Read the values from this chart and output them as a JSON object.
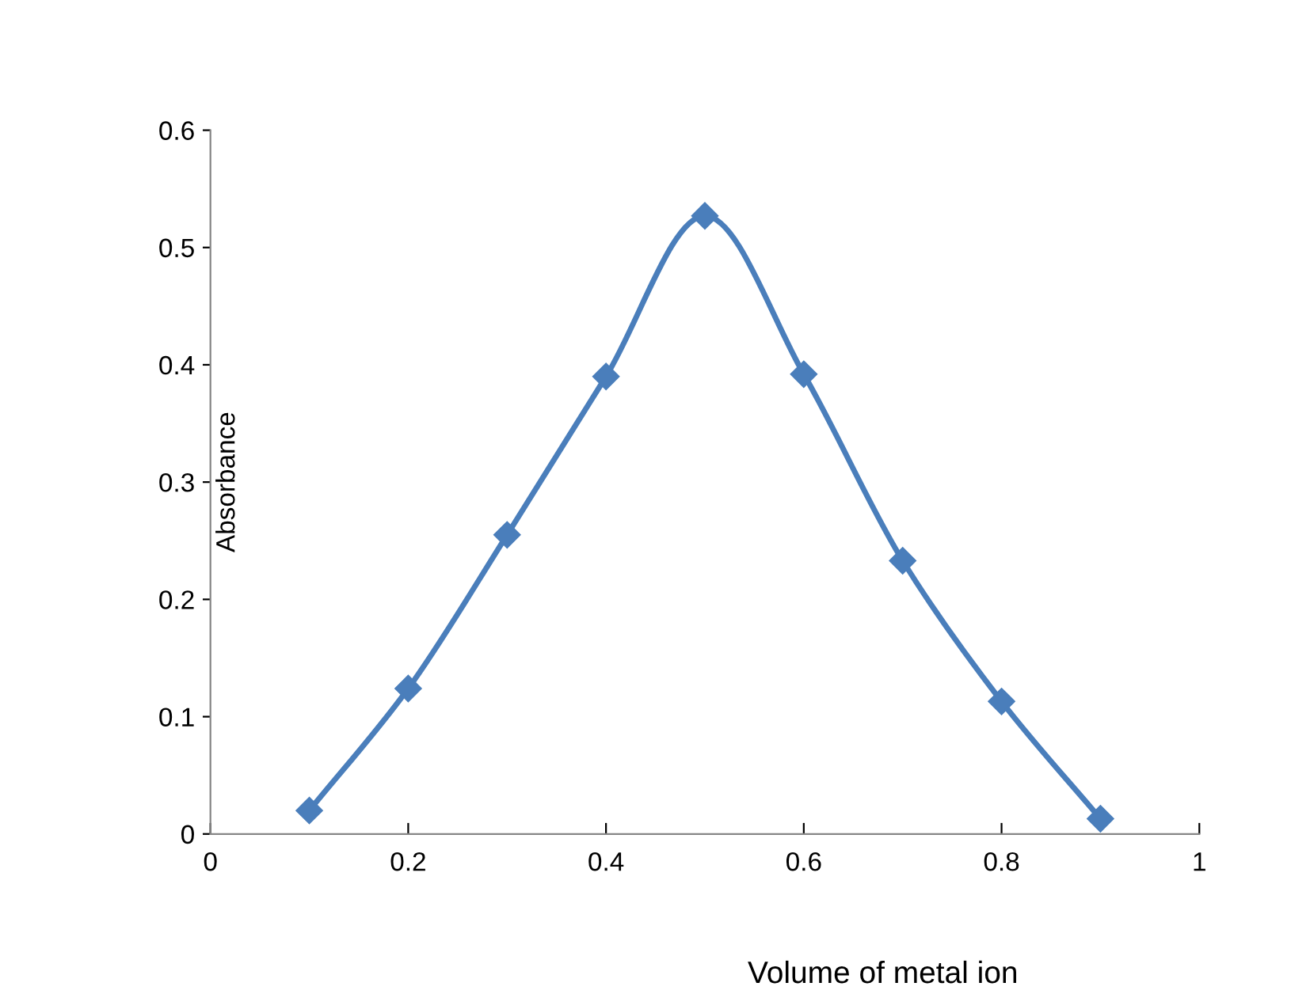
{
  "chart_data": {
    "type": "line",
    "xlabel": "Volume of metal ion",
    "ylabel": "Absorbance",
    "x": [
      0.1,
      0.2,
      0.3,
      0.4,
      0.5,
      0.6,
      0.7,
      0.8,
      0.9
    ],
    "series": [
      {
        "color": "#4a7ebb",
        "values": [
          0.02,
          0.124,
          0.255,
          0.39,
          0.527,
          0.392,
          0.233,
          0.113,
          0.013
        ]
      }
    ],
    "xlim": [
      0,
      1
    ],
    "xticks": [
      0,
      0.2,
      0.4,
      0.6,
      0.8,
      1
    ],
    "ylim": [
      0,
      0.6
    ],
    "yticks": [
      0,
      0.1,
      0.2,
      0.3,
      0.4,
      0.5,
      0.6
    ],
    "grid": false,
    "legend": false,
    "marker": "diamond",
    "line_style": "solid"
  }
}
